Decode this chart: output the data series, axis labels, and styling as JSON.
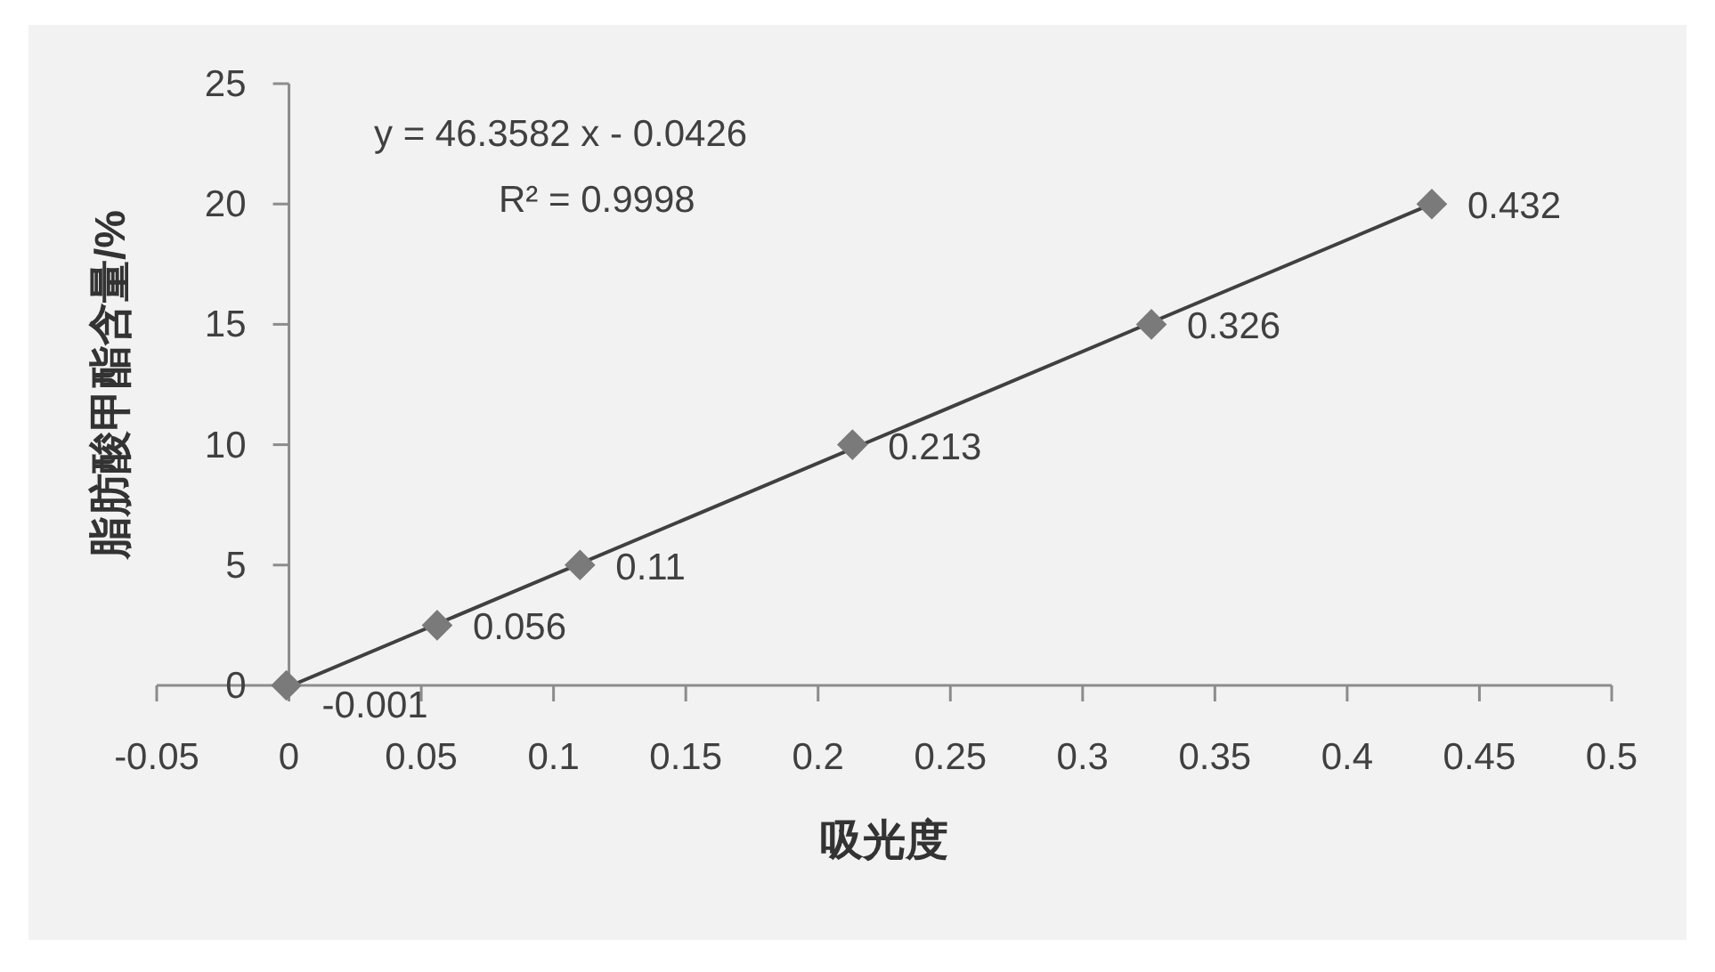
{
  "chart_data": {
    "type": "scatter",
    "xlabel": "吸光度",
    "ylabel": "脂肪酸甲酯含量/%",
    "xlim": [
      -0.05,
      0.5
    ],
    "xticks": [
      -0.05,
      0,
      0.05,
      0.1,
      0.15,
      0.2,
      0.25,
      0.3,
      0.35,
      0.4,
      0.45,
      0.5
    ],
    "ylim": [
      0,
      25
    ],
    "yticks": [
      0,
      5,
      10,
      15,
      20,
      25
    ],
    "grid": false,
    "marker": "diamond",
    "annotations": [
      "y = 46.3582 x -  0.0426",
      "R² = 0.9998",
      {
        "text": "-0.001",
        "x": -0.001,
        "y": 0
      },
      {
        "text": "0.056",
        "x": 0.056,
        "y": 2.5
      },
      {
        "text": "0.11",
        "x": 0.11,
        "y": 5
      },
      {
        "text": "0.213",
        "x": 0.213,
        "y": 10
      },
      {
        "text": "0.326",
        "x": 0.326,
        "y": 15
      },
      {
        "text": "0.432",
        "x": 0.432,
        "y": 20
      }
    ],
    "series": [
      {
        "color": "#7a7a7a",
        "x": [
          -0.001,
          0.056,
          0.11,
          0.213,
          0.326,
          0.432
        ],
        "values": [
          0,
          2.5,
          5,
          10,
          15,
          20
        ]
      },
      {
        "type": "line",
        "color": "#404040",
        "marker": "none",
        "line_style": "solid",
        "x": [
          0.001,
          0.432
        ],
        "values": [
          0,
          20
        ]
      }
    ]
  }
}
